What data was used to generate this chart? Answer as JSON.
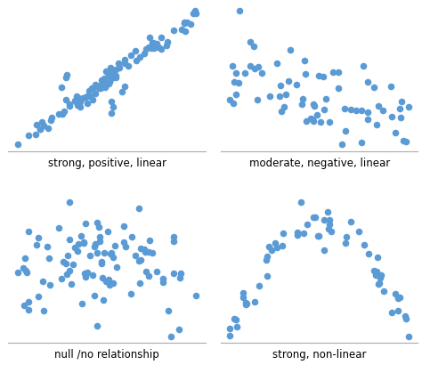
{
  "dot_color": "#5b9bd5",
  "dot_size": 30,
  "dot_alpha": 1.0,
  "background_color": "#ffffff",
  "labels": [
    "strong, positive, linear",
    "moderate, negative, linear",
    "null /no relationship",
    "strong, non-linear"
  ],
  "label_fontsize": 8.5,
  "seeds": [
    7,
    12,
    3,
    99
  ]
}
